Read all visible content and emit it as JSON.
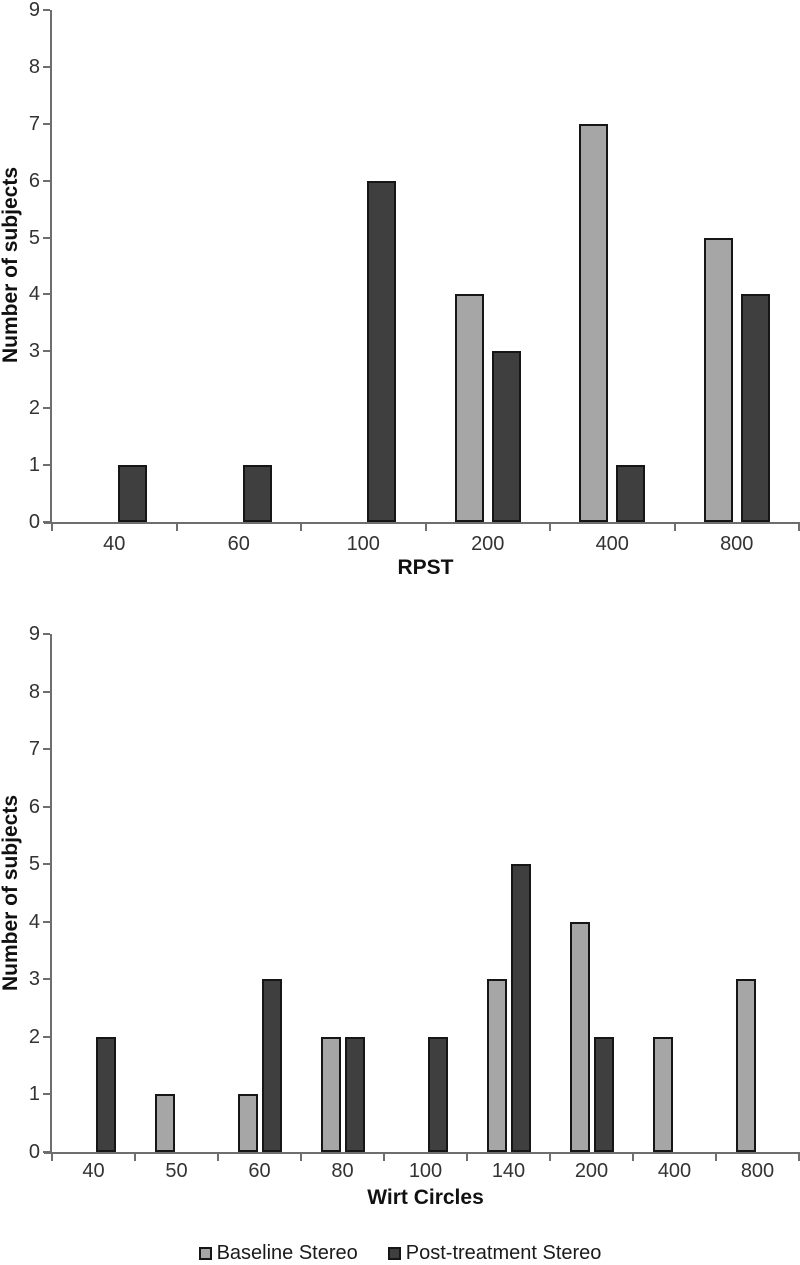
{
  "figure": {
    "y_axis_title": "Number of subjects"
  },
  "legend": {
    "items": [
      {
        "label": "Baseline Stereo",
        "color": "#a6a6a6"
      },
      {
        "label": "Post-treatment Stereo",
        "color": "#3f3f3f"
      }
    ]
  },
  "chart_data": [
    {
      "type": "bar",
      "title": "",
      "xlabel": "RPST",
      "ylabel": "Number of subjects",
      "categories": [
        "40",
        "60",
        "100",
        "200",
        "400",
        "800"
      ],
      "series": [
        {
          "name": "Baseline Stereo",
          "color": "#a6a6a6",
          "values": [
            0,
            0,
            0,
            4,
            7,
            5
          ]
        },
        {
          "name": "Post-treatment Stereo",
          "color": "#3f3f3f",
          "values": [
            1,
            1,
            6,
            3,
            1,
            4
          ]
        }
      ],
      "ylim": [
        0,
        9
      ],
      "yticks": [
        0,
        1,
        2,
        3,
        4,
        5,
        6,
        7,
        8,
        9
      ],
      "grid": false,
      "legend_position": "bottom"
    },
    {
      "type": "bar",
      "title": "",
      "xlabel": "Wirt Circles",
      "ylabel": "Number of subjects",
      "categories": [
        "40",
        "50",
        "60",
        "80",
        "100",
        "140",
        "200",
        "400",
        "800"
      ],
      "series": [
        {
          "name": "Baseline Stereo",
          "color": "#a6a6a6",
          "values": [
            0,
            1,
            1,
            2,
            0,
            3,
            4,
            2,
            3
          ]
        },
        {
          "name": "Post-treatment Stereo",
          "color": "#3f3f3f",
          "values": [
            2,
            0,
            3,
            2,
            2,
            5,
            2,
            0,
            0
          ]
        }
      ],
      "ylim": [
        0,
        9
      ],
      "yticks": [
        0,
        1,
        2,
        3,
        4,
        5,
        6,
        7,
        8,
        9
      ],
      "grid": false,
      "legend_position": "bottom"
    }
  ]
}
